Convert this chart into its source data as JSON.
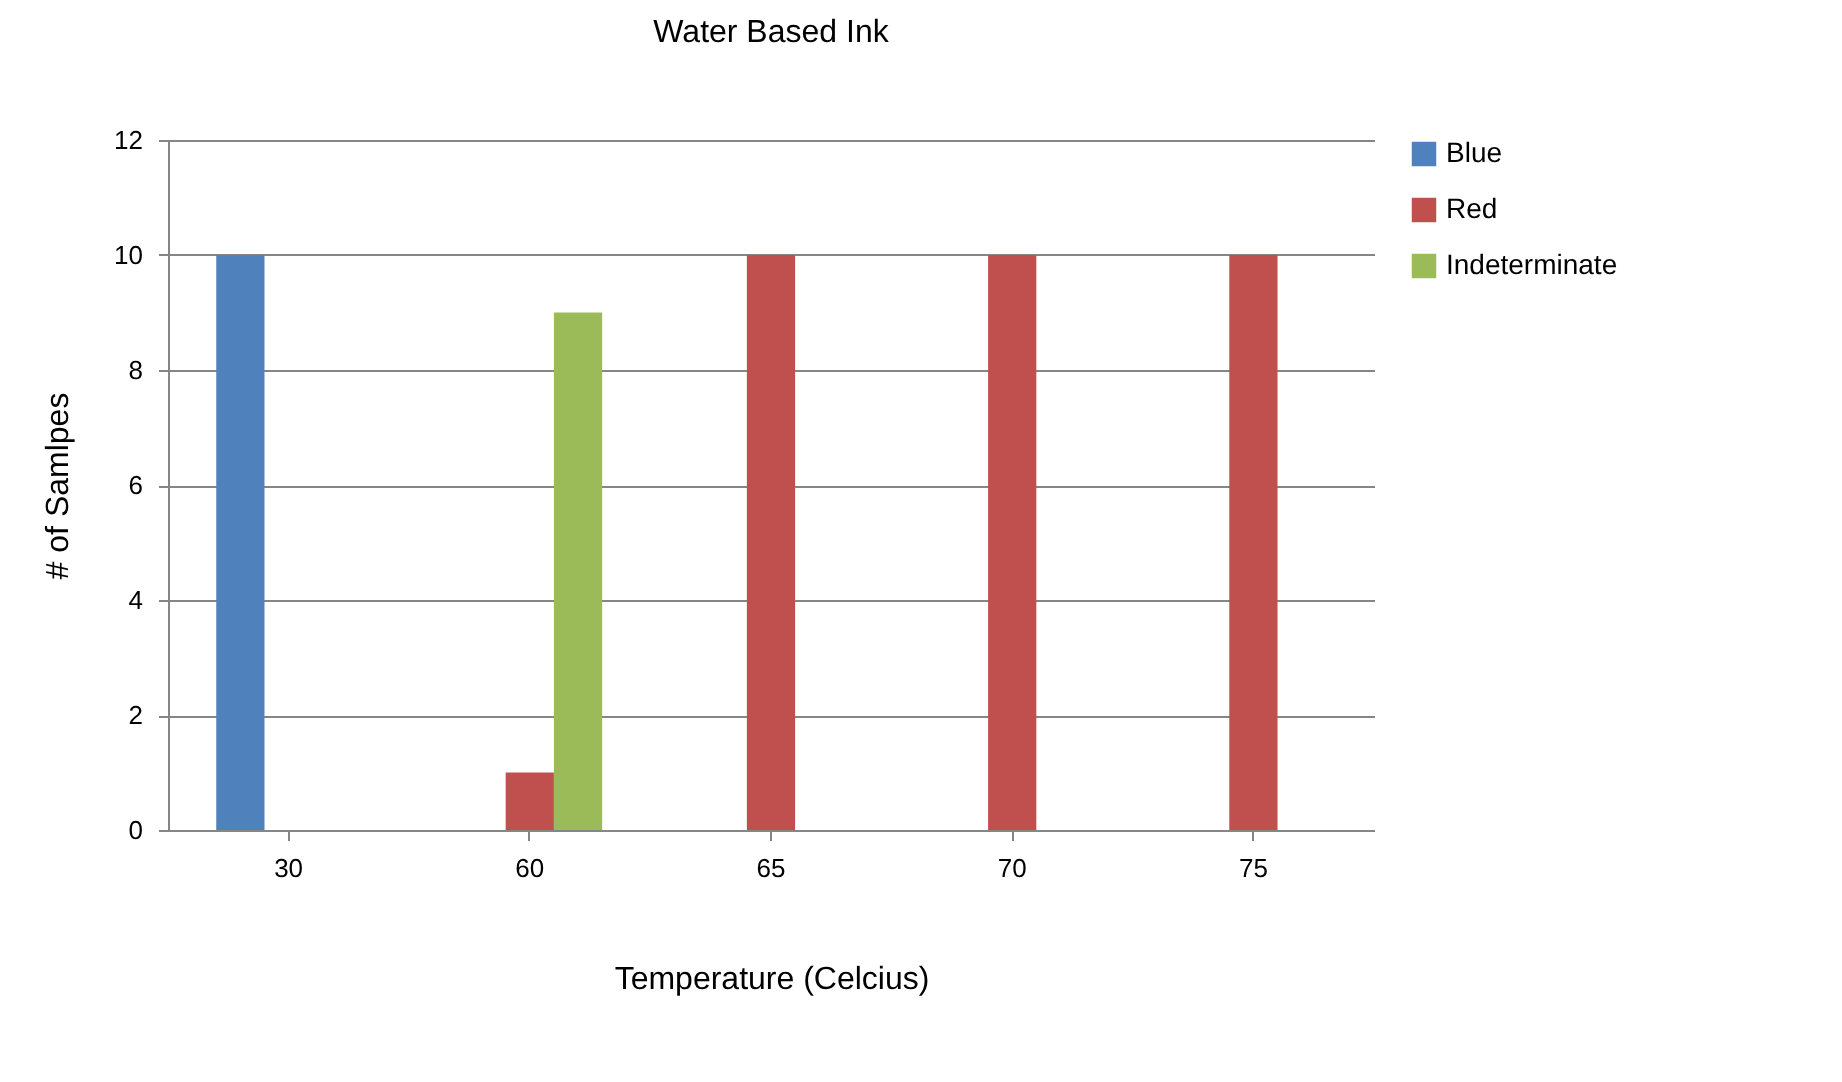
{
  "chart_data": {
    "type": "bar",
    "title": "Water Based Ink",
    "xlabel": "Temperature (Celcius)",
    "ylabel": "# of Samlpes",
    "categories": [
      "30",
      "60",
      "65",
      "70",
      "75"
    ],
    "series": [
      {
        "name": "Blue",
        "color": "#4f81bd",
        "values": [
          10,
          0,
          0,
          0,
          0
        ]
      },
      {
        "name": "Red",
        "color": "#c0504d",
        "values": [
          0,
          1,
          10,
          10,
          10
        ]
      },
      {
        "name": "Indeterminate",
        "color": "#9bbb59",
        "values": [
          0,
          9,
          0,
          0,
          0
        ]
      }
    ],
    "ylim": [
      0,
      12
    ],
    "yticks": [
      0,
      2,
      4,
      6,
      8,
      10,
      12
    ],
    "grid": "y",
    "legend": "right"
  }
}
